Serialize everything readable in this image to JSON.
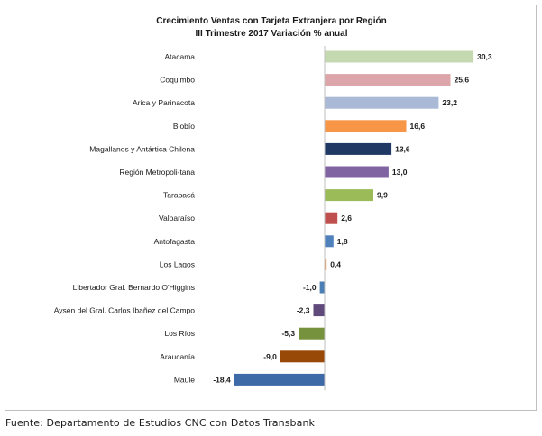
{
  "chart_data": {
    "type": "bar",
    "orientation": "horizontal",
    "title": "Crecimiento Ventas con Tarjeta Extranjera por Región",
    "subtitle": "III Trimestre 2017 Variación % anual",
    "categories": [
      "Atacama",
      "Coquimbo",
      "Arica y Parinacota",
      "Biobío",
      "Magallanes y Antártica Chilena",
      "Región Metropoli-tana",
      "Tarapacá",
      "Valparaíso",
      "Antofagasta",
      "Los Lagos",
      "Libertador Gral. Bernardo O'Higgins",
      "Aysén del Gral. Carlos Ibañez del Campo",
      "Los Ríos",
      "Araucanía",
      "Maule"
    ],
    "values": [
      30.3,
      25.6,
      23.2,
      16.6,
      13.6,
      13.0,
      9.9,
      2.6,
      1.8,
      0.4,
      -1.0,
      -2.3,
      -5.3,
      -9.0,
      -18.4
    ],
    "value_labels": [
      "30,3",
      "25,6",
      "23,2",
      "16,6",
      "13,6",
      "13,0",
      "9,9",
      "2,6",
      "1,8",
      "0,4",
      "-1,0",
      "-2,3",
      "-5,3",
      "-9,0",
      "-18,4"
    ],
    "colors": [
      "#c5d9b0",
      "#dba5aa",
      "#aabad6",
      "#f79646",
      "#1f3864",
      "#8064a2",
      "#9bbb59",
      "#c0504d",
      "#4f81bd",
      "#f0a060",
      "#4a7eb5",
      "#604a7b",
      "#76923c",
      "#984807",
      "#3f6aa8"
    ],
    "xlabel": "",
    "ylabel": "",
    "xlim": [
      -20,
      32
    ],
    "grid": false,
    "legend": "none"
  },
  "footer": {
    "source": "Fuente: Departamento de Estudios CNC con Datos Transbank"
  }
}
